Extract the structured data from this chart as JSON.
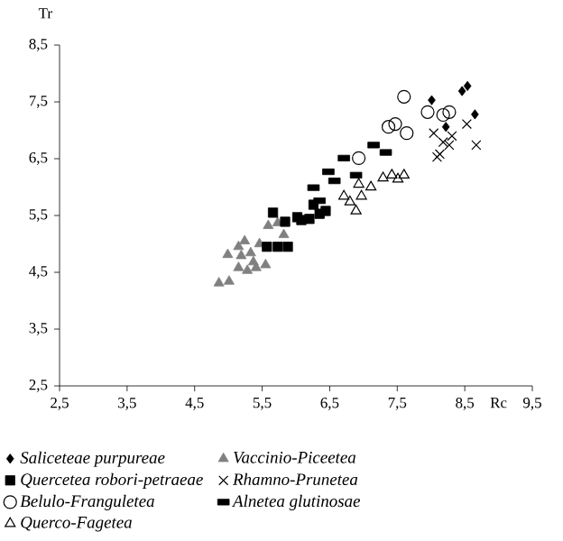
{
  "chart_data": {
    "type": "scatter",
    "xlabel": "Rc",
    "ylabel": "Tr",
    "xlim": [
      2.5,
      9.5
    ],
    "ylim": [
      2.5,
      8.5
    ],
    "xticks": [
      {
        "value": 2.5,
        "label": "2,5"
      },
      {
        "value": 3.5,
        "label": "3,5"
      },
      {
        "value": 4.5,
        "label": "4,5"
      },
      {
        "value": 5.5,
        "label": "5,5"
      },
      {
        "value": 6.5,
        "label": "6,5"
      },
      {
        "value": 7.5,
        "label": "7,5"
      },
      {
        "value": 8.5,
        "label": "8,5"
      },
      {
        "value": 9.5,
        "label": "9,5"
      }
    ],
    "yticks": [
      {
        "value": 2.5,
        "label": "2,5"
      },
      {
        "value": 3.5,
        "label": "3,5"
      },
      {
        "value": 4.5,
        "label": "4,5"
      },
      {
        "value": 5.5,
        "label": "5,5"
      },
      {
        "value": 6.5,
        "label": "6,5"
      },
      {
        "value": 7.5,
        "label": "7,5"
      },
      {
        "value": 8.5,
        "label": "8,5"
      }
    ],
    "grid": false,
    "legend": "bottom",
    "series": [
      {
        "name": "*Saliceteae purpureae*",
        "color": "#000000",
        "marker": "diamond",
        "x": [
          8.46,
          8.54,
          8.65,
          8.01,
          8.22
        ],
        "values": [
          7.69,
          7.78,
          7.28,
          7.53,
          7.06
        ]
      },
      {
        "name": "*Vaccinio-Piceetea*",
        "color": "#808080",
        "marker": "triangle",
        "x": [
          4.86,
          5.01,
          4.99,
          5.15,
          5.24,
          5.19,
          5.33,
          5.41,
          5.55,
          5.28,
          5.15,
          5.46,
          5.59,
          5.73,
          5.82,
          5.37
        ],
        "values": [
          4.31,
          4.34,
          4.81,
          4.95,
          5.05,
          4.79,
          4.84,
          4.58,
          4.63,
          4.53,
          4.58,
          5.0,
          5.32,
          5.37,
          5.16,
          4.68
        ]
      },
      {
        "name": "*Quercetea robori-petraeae*",
        "color": "#000000",
        "marker": "square",
        "x": [
          5.66,
          5.84,
          6.02,
          6.2,
          6.35,
          6.44,
          5.57,
          5.73,
          5.88,
          6.26,
          6.08
        ],
        "values": [
          5.55,
          5.39,
          5.47,
          5.44,
          5.53,
          5.58,
          4.95,
          4.95,
          4.95,
          5.69,
          5.42
        ]
      },
      {
        "name": "*Rhamno-Prunetea*",
        "color": "#000000",
        "marker": "cross",
        "x": [
          8.04,
          8.09,
          8.31,
          8.27,
          8.67,
          8.53,
          8.18,
          8.13
        ],
        "values": [
          6.95,
          6.53,
          6.9,
          6.74,
          6.74,
          7.11,
          6.79,
          6.58
        ]
      },
      {
        "name": "*Belulo-Franguletea*",
        "color": "#000000",
        "marker": "circle",
        "x": [
          7.6,
          7.95,
          8.18,
          8.27,
          7.37,
          7.47,
          7.64,
          6.93
        ],
        "values": [
          7.59,
          7.32,
          7.27,
          7.32,
          7.06,
          7.11,
          6.95,
          6.51
        ]
      },
      {
        "name": "*Alnetea glutinosae*",
        "color": "#000000",
        "x": [
          7.15,
          7.33,
          6.71,
          6.89,
          6.48,
          6.57,
          6.26,
          6.35
        ],
        "values": [
          6.74,
          6.61,
          6.51,
          6.21,
          6.27,
          6.11,
          5.99,
          5.76
        ]
      },
      {
        "name": "*Querco-Fagetea*",
        "color": "#000000",
        "marker": "triangle",
        "x": [
          6.71,
          6.93,
          6.89,
          7.11,
          7.29,
          7.42,
          7.6,
          7.51,
          6.97,
          6.8
        ],
        "values": [
          5.84,
          6.05,
          5.58,
          6.0,
          6.16,
          6.21,
          6.21,
          6.14,
          5.84,
          5.74
        ]
      }
    ]
  }
}
